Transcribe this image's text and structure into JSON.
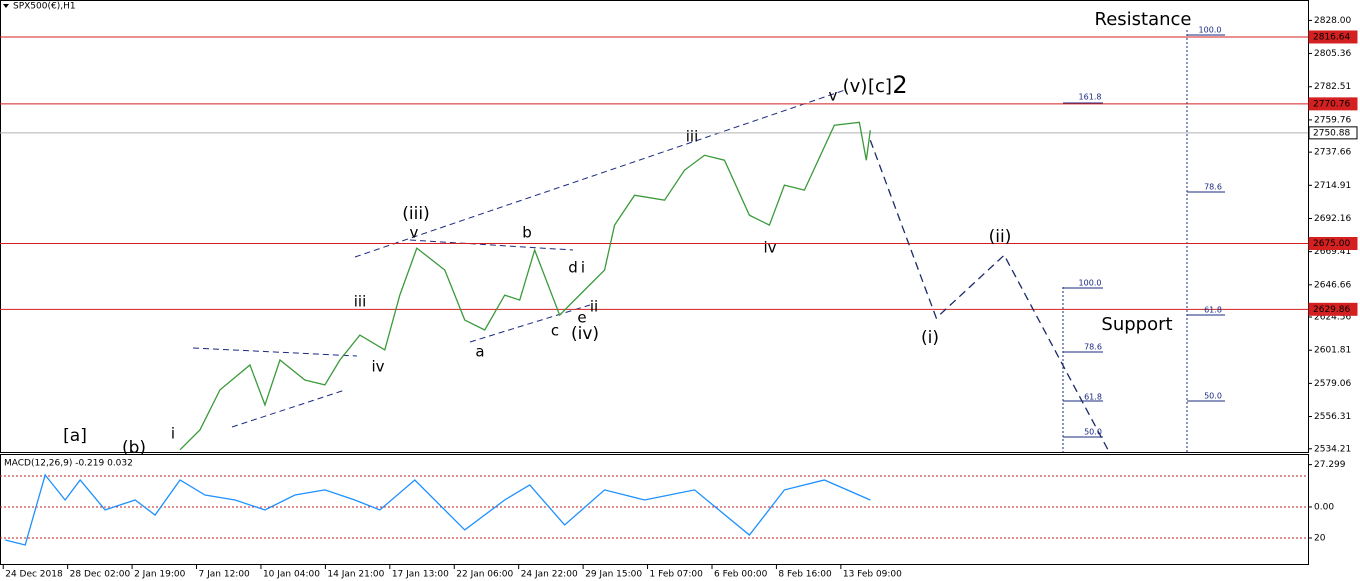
{
  "chart_data": {
    "type": "line",
    "title": "SPX500(€),H1",
    "ylim": [
      2532,
      2842
    ],
    "yticks": [
      {
        "value": 2828,
        "label": "2828.00"
      },
      2805.36,
      2782.51,
      2759.76,
      2737.66,
      2714.91,
      2692.16,
      2669.41,
      2646.66,
      2624.56,
      2601.81,
      2579.06,
      2556.31,
      2534.21
    ],
    "xlim": [
      -0.05,
      20.25
    ],
    "xticks": [
      {
        "value": 0,
        "label": "24 Dec 2018"
      },
      {
        "value": 1,
        "label": "28 Dec 02:00"
      },
      {
        "value": 2,
        "label": "2 Jan 19:00"
      },
      {
        "value": 3,
        "label": "7 Jan 12:00"
      },
      {
        "value": 4,
        "label": "10 Jan 04:00"
      },
      {
        "value": 5,
        "label": "14 Jan 21:00"
      },
      {
        "value": 6,
        "label": "17 Jan 13:00"
      },
      {
        "value": 7,
        "label": "22 Jan 06:00"
      },
      {
        "value": 8,
        "label": "24 Jan 22:00"
      },
      {
        "value": 9,
        "label": "29 Jan 15:00"
      },
      {
        "value": 10,
        "label": "1 Feb 07:00"
      },
      {
        "value": 11,
        "label": "6 Feb 00:00"
      },
      {
        "value": 12,
        "label": "8 Feb 16:00"
      },
      {
        "value": 13,
        "label": "13 Feb 09:00"
      }
    ],
    "price": {
      "color": "#3a9a3a",
      "x": [
        2.744,
        3.054,
        3.364,
        3.829,
        4.062,
        4.295,
        4.682,
        4.992,
        5.225,
        5.535,
        5.922,
        6.155,
        6.419,
        6.853,
        7.163,
        7.473,
        7.783,
        8.016,
        8.248,
        8.636,
        9.023,
        9.333,
        9.488,
        9.798,
        10.264,
        10.574,
        10.884,
        11.194,
        11.581,
        11.891,
        12.124,
        12.434,
        12.899,
        13.287,
        13.395,
        13.457
      ],
      "values": [
        2533.5,
        2547.2,
        2574.6,
        2591.7,
        2564.3,
        2595.1,
        2581.4,
        2578.0,
        2595.1,
        2612.2,
        2602.0,
        2639.6,
        2671.8,
        2656.8,
        2622.5,
        2615.7,
        2639.6,
        2636.2,
        2670.5,
        2625.9,
        2643.1,
        2656.8,
        2687.6,
        2708.1,
        2704.7,
        2725.3,
        2735.5,
        2732.1,
        2694.4,
        2687.6,
        2715.0,
        2711.6,
        2756.1,
        2758.1,
        2732.1,
        2752.7
      ]
    },
    "projection": {
      "color": "#1a2a6a",
      "x": [
        13.457,
        14.481,
        15.535,
        17.163
      ],
      "values": [
        2745.8,
        2623.9,
        2667.0,
        2532.1
      ]
    },
    "levels": [
      2816.64,
      2770.76,
      2750.88,
      {
        "value": 2675,
        "label": "2675.00"
      },
      2629.86
    ],
    "level_colors": [
      "#d42020",
      "#d42020",
      "#b0b0b0",
      "#d42020",
      "#d42020"
    ],
    "level_label_colors": [
      "#d42020",
      "#d42020",
      "#ffffff",
      "#d42020",
      "#d42020"
    ],
    "zone_labels": [
      "Resistance",
      "Support"
    ],
    "fib_labels": [
      "100.0",
      "161.8",
      "78.6",
      "61.8",
      "50.0",
      "100.0",
      "78.6",
      "61.8",
      "50.0"
    ],
    "annotations": [
      {
        "text": "(v)",
        "color": "#405050"
      },
      {
        "text": "[c]",
        "color": "#1a7a1a"
      },
      {
        "text": "2",
        "color": "#102090"
      },
      {
        "text": "v",
        "color": "#e020e0"
      },
      {
        "text": "iii",
        "color": "#e020e0"
      },
      {
        "text": "iv",
        "color": "#e020e0"
      },
      {
        "text": "(iii)",
        "color": "#405050"
      },
      {
        "text": "v",
        "color": "#e020e0"
      },
      {
        "text": "b",
        "color": "#e020e0"
      },
      {
        "text": "d",
        "color": "#e020e0"
      },
      {
        "text": "i",
        "color": "#e020e0"
      },
      {
        "text": "ii",
        "color": "#e020e0"
      },
      {
        "text": "e",
        "color": "#e020e0"
      },
      {
        "text": "c",
        "color": "#e020e0"
      },
      {
        "text": "(iv)",
        "color": "#405050"
      },
      {
        "text": "a",
        "color": "#e020e0"
      },
      {
        "text": "iii",
        "color": "#e020e0"
      },
      {
        "text": "iv",
        "color": "#e020e0"
      },
      {
        "text": "i",
        "color": "#e020e0"
      },
      {
        "text": "(b)",
        "color": "#405050"
      },
      {
        "text": "[a]",
        "color": "#1a7a1a"
      },
      {
        "text": "(ii)",
        "color": "#405050"
      },
      {
        "text": "(i)",
        "color": "#405050"
      }
    ],
    "macd": {
      "label": "MACD(12,26,9) -0.219 0.032",
      "color": "#1e90ff",
      "ylim": [
        -37.4,
        33.5
      ],
      "yticks": [
        27.299,
        {
          "value": 0,
          "label": "0.00"
        },
        {
          "value": -20,
          "label": "20"
        }
      ],
      "x": [
        0.031,
        0.341,
        0.651,
        0.961,
        1.194,
        1.581,
        2.047,
        2.357,
        2.744,
        3.132,
        3.597,
        4.062,
        4.527,
        4.992,
        5.457,
        5.845,
        6.388,
        7.163,
        7.783,
        8.171,
        8.713,
        9.333,
        9.953,
        10.729,
        11.581,
        12.124,
        12.744,
        13.457
      ],
      "values": [
        -21.3,
        -24.5,
        20.6,
        4.5,
        17.4,
        -1.9,
        4.5,
        -5.2,
        17.4,
        7.7,
        4.5,
        -1.9,
        7.7,
        11.0,
        4.5,
        -1.9,
        17.4,
        -14.8,
        4.5,
        14.2,
        -11.6,
        11.0,
        4.5,
        11.0,
        -18.1,
        11.0,
        17.4,
        4.5
      ]
    }
  }
}
